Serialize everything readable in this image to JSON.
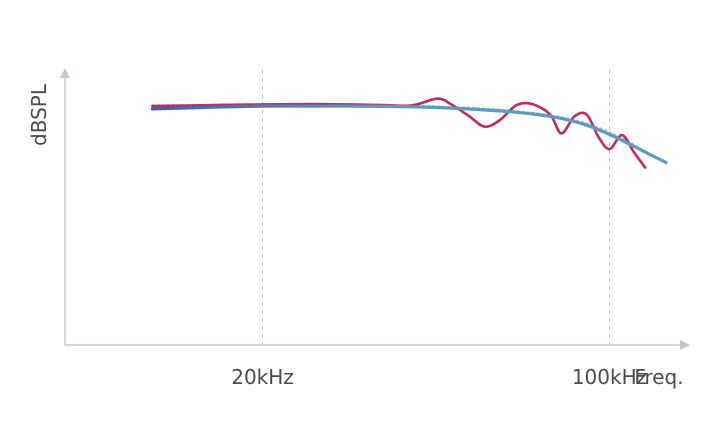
{
  "chart_data": {
    "type": "line",
    "title": "",
    "xlabel": "Freq.",
    "ylabel": "dBSPL",
    "x_scale": "log",
    "xlim": [
      8000,
      140000
    ],
    "ylim": [
      -70,
      10
    ],
    "grid": false,
    "legend": "none",
    "x_ticks": [
      {
        "value": 20000,
        "label": "20kHz"
      },
      {
        "value": 100000,
        "label": "100kHz"
      }
    ],
    "colors": {
      "measured": "#c42a62",
      "fitted": "#5b9dc1",
      "fitted_dark": "#3e5fb0",
      "reference": "#b4b8bf",
      "axis": "#c3c7cf",
      "text": "#4b4b4b"
    },
    "series": [
      {
        "key": "measured",
        "style": "solid",
        "color": "#c42a62",
        "x": [
          12000,
          16000,
          20000,
          25000,
          30000,
          35000,
          40000,
          45000,
          48000,
          52000,
          56000,
          60000,
          65000,
          70000,
          76000,
          80000,
          85000,
          90000,
          95000,
          100000,
          106000,
          112000,
          118000
        ],
        "y": [
          0.0,
          0.3,
          0.5,
          0.6,
          0.5,
          0.3,
          0.2,
          2.2,
          0.5,
          -2.8,
          -6.0,
          -4.2,
          0.3,
          0.6,
          -2.5,
          -8.0,
          -3.0,
          -2.5,
          -9.0,
          -12.6,
          -8.5,
          -13.5,
          -18.0
        ]
      },
      {
        "key": "fitted",
        "style": "solid",
        "color": "#5b9dc1",
        "x": [
          12000,
          16000,
          20000,
          25000,
          30000,
          40000,
          50000,
          60000,
          70000,
          80000,
          90000,
          100000,
          110000,
          120000,
          130000
        ],
        "y": [
          -0.8,
          -0.3,
          0.0,
          0.0,
          0.0,
          -0.2,
          -0.7,
          -1.4,
          -2.3,
          -3.6,
          -5.6,
          -8.3,
          -11.2,
          -14.0,
          -16.5
        ]
      },
      {
        "key": "reference",
        "style": "dotted",
        "color": "#b4b8bf",
        "x": [
          12000,
          20000,
          30000,
          40000,
          50000,
          60000,
          70000,
          80000,
          90000,
          100000,
          110000,
          120000,
          130000
        ],
        "y": [
          0.3,
          0.5,
          0.5,
          0.2,
          -0.3,
          -1.0,
          -1.9,
          -3.2,
          -5.0,
          -7.6,
          -10.6,
          -13.8,
          -16.8
        ]
      }
    ]
  }
}
